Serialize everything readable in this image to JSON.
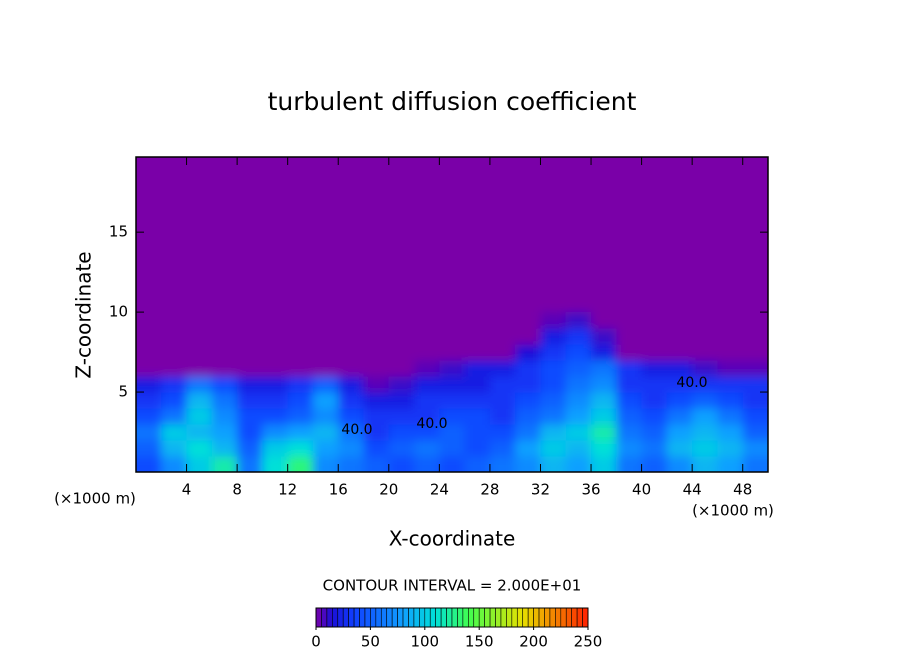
{
  "chart_data": {
    "type": "heatmap",
    "title": "turbulent diffusion coefficient",
    "x_label": "X-coordinate",
    "y_label": "Z-coordinate",
    "x_unit": "(×1000 m)",
    "y_unit": "(×1000 m)",
    "contour_interval": "CONTOUR INTERVAL = 2.000E+01",
    "contour_labels": [
      {
        "value": 40,
        "label": "40.0"
      },
      {
        "value": 40,
        "label": "40.0"
      },
      {
        "value": 40,
        "label": "40.0"
      }
    ],
    "xlim": [
      0,
      50
    ],
    "ylim": [
      0,
      19.7
    ],
    "xticks": [
      4,
      8,
      12,
      16,
      20,
      24,
      28,
      32,
      36,
      40,
      44,
      48
    ],
    "yticks": [
      5,
      10,
      15
    ],
    "x": [
      1,
      3,
      5,
      7,
      9,
      11,
      13,
      15,
      17,
      19,
      21,
      23,
      25,
      27,
      29,
      31,
      33,
      35,
      37,
      39,
      41,
      43,
      45,
      47,
      49
    ],
    "y": [
      0.5,
      1.5,
      2.5,
      3.5,
      4.5,
      5.5,
      6.5,
      7.5,
      8.5,
      9.5
    ],
    "z": [
      [
        40,
        70,
        100,
        120,
        60,
        110,
        130,
        70,
        60,
        50,
        40,
        50,
        40,
        50,
        60,
        70,
        90,
        80,
        100,
        60,
        50,
        70,
        90,
        80,
        60
      ],
      [
        50,
        90,
        110,
        90,
        50,
        100,
        110,
        80,
        70,
        40,
        50,
        60,
        50,
        40,
        50,
        80,
        100,
        90,
        110,
        70,
        60,
        90,
        100,
        90,
        70
      ],
      [
        60,
        100,
        90,
        80,
        40,
        70,
        80,
        90,
        60,
        30,
        40,
        40,
        50,
        40,
        40,
        60,
        90,
        100,
        120,
        60,
        50,
        80,
        90,
        80,
        50
      ],
      [
        40,
        60,
        100,
        70,
        40,
        40,
        50,
        70,
        40,
        30,
        30,
        30,
        40,
        40,
        30,
        50,
        60,
        80,
        100,
        50,
        40,
        60,
        80,
        60,
        40
      ],
      [
        30,
        40,
        90,
        60,
        30,
        30,
        40,
        80,
        30,
        20,
        20,
        30,
        30,
        30,
        30,
        40,
        50,
        70,
        90,
        40,
        30,
        40,
        50,
        40,
        30
      ],
      [
        20,
        30,
        60,
        40,
        20,
        20,
        30,
        50,
        20,
        5,
        10,
        20,
        20,
        20,
        30,
        30,
        40,
        60,
        70,
        30,
        30,
        30,
        30,
        30,
        30
      ],
      [
        0,
        0,
        0,
        0,
        0,
        0,
        0,
        0,
        0,
        0,
        0,
        5,
        10,
        20,
        20,
        30,
        40,
        50,
        60,
        30,
        20,
        20,
        10,
        5,
        5
      ],
      [
        0,
        0,
        0,
        0,
        0,
        0,
        0,
        0,
        0,
        0,
        0,
        0,
        0,
        0,
        0,
        15,
        30,
        40,
        20,
        0,
        0,
        0,
        0,
        0,
        0
      ],
      [
        0,
        0,
        0,
        0,
        0,
        0,
        0,
        0,
        0,
        0,
        0,
        0,
        0,
        0,
        0,
        0,
        20,
        30,
        10,
        0,
        0,
        0,
        0,
        0,
        0
      ],
      [
        0,
        0,
        0,
        0,
        0,
        0,
        0,
        0,
        0,
        0,
        0,
        0,
        0,
        0,
        0,
        0,
        5,
        10,
        0,
        0,
        0,
        0,
        0,
        0,
        0
      ]
    ],
    "clim": [
      0,
      250
    ],
    "colorbar_ticks": [
      0,
      50,
      100,
      150,
      200,
      250
    ],
    "colorscale": [
      [
        0,
        "#7a00a8"
      ],
      [
        15,
        "#1a10d8"
      ],
      [
        35,
        "#1040ff"
      ],
      [
        80,
        "#10a0ff"
      ],
      [
        110,
        "#00e0d8"
      ],
      [
        140,
        "#40ff50"
      ],
      [
        190,
        "#e8e000"
      ],
      [
        250,
        "#ff2000"
      ]
    ]
  }
}
